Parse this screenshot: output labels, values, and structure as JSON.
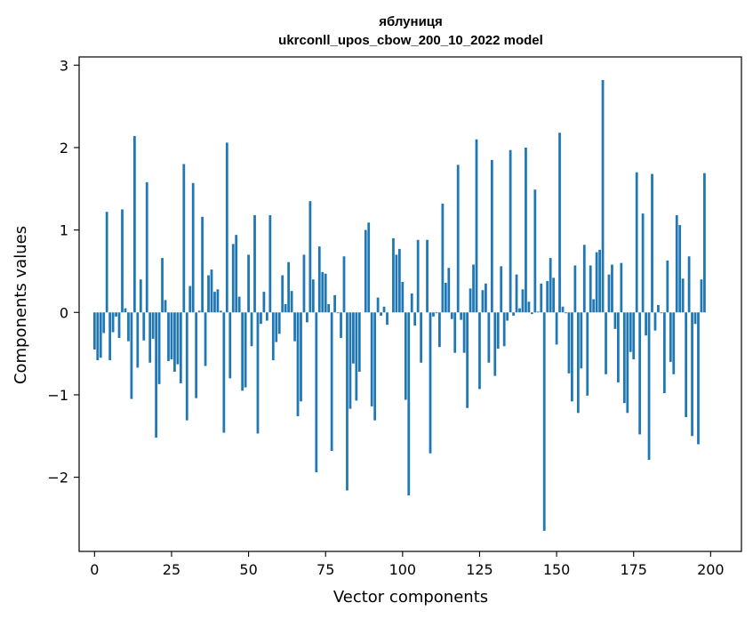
{
  "chart_data": {
    "type": "bar",
    "title_line1": "яблуниця",
    "title_line2": "ukrconll_upos_cbow_200_10_2022 model",
    "xlabel": "Vector components",
    "ylabel": "Components values",
    "xlim": [
      -5,
      210
    ],
    "ylim": [
      -2.9,
      3.1
    ],
    "xticks": [
      0,
      25,
      50,
      75,
      100,
      125,
      150,
      175,
      200
    ],
    "xtick_labels": [
      "0",
      "25",
      "50",
      "75",
      "100",
      "125",
      "150",
      "175",
      "200"
    ],
    "yticks": [
      -2,
      -1,
      0,
      1,
      2,
      3
    ],
    "ytick_labels": [
      "−2",
      "−1",
      "0",
      "1",
      "2",
      "3"
    ],
    "bar_color": "#1f77b4",
    "values": [
      -0.45,
      -0.58,
      -0.55,
      -0.25,
      1.22,
      -0.58,
      -0.24,
      -0.05,
      -0.31,
      1.25,
      0.05,
      -0.35,
      -1.05,
      2.14,
      -0.67,
      0.4,
      -0.34,
      1.58,
      -0.61,
      -0.32,
      -1.52,
      -0.87,
      0.66,
      0.15,
      -0.59,
      -0.57,
      -0.72,
      -0.63,
      -0.86,
      1.8,
      -1.31,
      0.32,
      1.57,
      -1.04,
      0.02,
      1.16,
      -0.65,
      0.45,
      0.52,
      0.25,
      0.28,
      0.02,
      -1.46,
      2.06,
      -0.8,
      0.83,
      0.94,
      0.19,
      -0.95,
      -0.91,
      0.7,
      -0.41,
      1.18,
      -1.47,
      -0.14,
      0.25,
      -0.1,
      1.18,
      -0.58,
      -0.36,
      -0.26,
      0.45,
      0.1,
      0.61,
      0.26,
      -0.35,
      -1.26,
      -1.08,
      0.7,
      -0.12,
      1.35,
      0.4,
      -1.94,
      0.8,
      0.49,
      0.47,
      0.1,
      -1.68,
      0.21,
      -0.01,
      -0.31,
      0.68,
      -2.16,
      -1.17,
      -0.62,
      -1.07,
      -0.72,
      0.0,
      1.0,
      1.09,
      -1.14,
      -1.31,
      0.18,
      -0.04,
      0.07,
      -0.15,
      0.0,
      0.9,
      0.7,
      0.77,
      0.37,
      -1.06,
      -2.22,
      0.23,
      -0.16,
      0.88,
      -0.61,
      0.0,
      0.88,
      -1.71,
      -0.05,
      -0.01,
      -0.42,
      1.32,
      0.36,
      0.54,
      -0.08,
      -0.49,
      1.79,
      -0.09,
      -0.49,
      -1.16,
      0.29,
      0.58,
      2.1,
      -0.93,
      0.27,
      0.35,
      -0.61,
      1.85,
      -0.77,
      -0.44,
      0.56,
      -0.41,
      -0.1,
      1.97,
      -0.04,
      0.46,
      0.05,
      0.28,
      2.0,
      0.13,
      -0.02,
      1.49,
      0.01,
      0.35,
      -2.65,
      0.38,
      0.66,
      0.42,
      -0.39,
      2.18,
      0.07,
      -0.01,
      -0.74,
      -1.08,
      0.57,
      -1.22,
      -0.68,
      0.82,
      -1.01,
      0.57,
      0.16,
      0.73,
      0.76,
      2.82,
      -0.75,
      0.46,
      0.58,
      -0.2,
      -0.85,
      0.6,
      -1.1,
      -1.22,
      -0.48,
      -0.57,
      1.7,
      -1.48,
      1.2,
      -0.28,
      -1.79,
      1.68,
      -0.22,
      0.09,
      -0.01,
      -0.98,
      0.63,
      -0.6,
      -0.75,
      1.18,
      1.06,
      0.41,
      -1.27,
      0.68,
      -1.5,
      -0.14,
      -1.6,
      0.4,
      1.69
    ]
  }
}
